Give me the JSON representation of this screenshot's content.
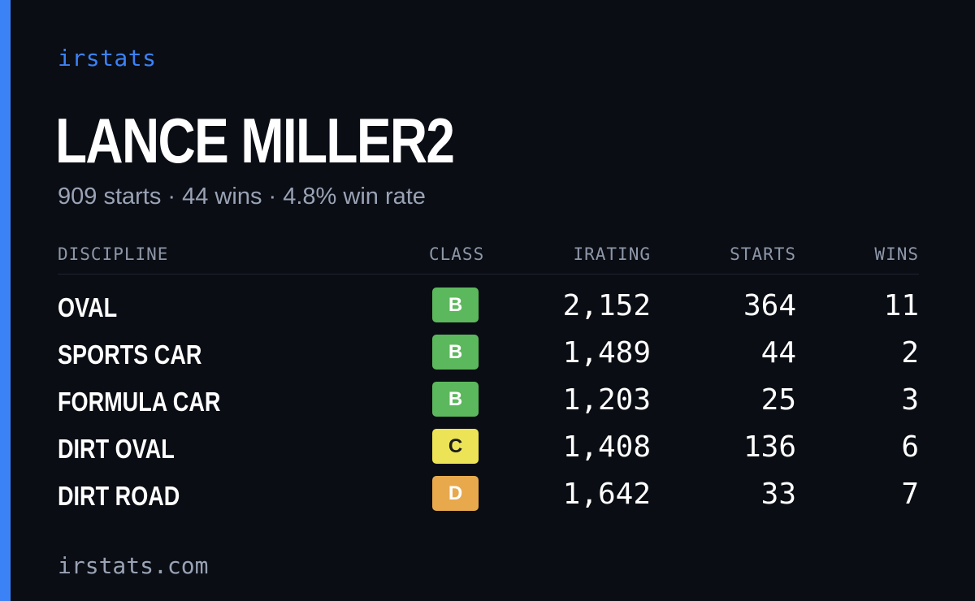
{
  "brand": "irstats",
  "driver": {
    "name": "LANCE MILLER2",
    "summary": "909 starts · 44 wins · 4.8% win rate"
  },
  "table": {
    "headers": {
      "discipline": "DISCIPLINE",
      "class": "CLASS",
      "irating": "IRATING",
      "starts": "STARTS",
      "wins": "WINS"
    },
    "rows": [
      {
        "discipline": "OVAL",
        "class": "B",
        "irating": "2,152",
        "starts": "364",
        "wins": "11"
      },
      {
        "discipline": "SPORTS CAR",
        "class": "B",
        "irating": "1,489",
        "starts": "44",
        "wins": "2"
      },
      {
        "discipline": "FORMULA CAR",
        "class": "B",
        "irating": "1,203",
        "starts": "25",
        "wins": "3"
      },
      {
        "discipline": "DIRT OVAL",
        "class": "C",
        "irating": "1,408",
        "starts": "136",
        "wins": "6"
      },
      {
        "discipline": "DIRT ROAD",
        "class": "D",
        "irating": "1,642",
        "starts": "33",
        "wins": "7"
      }
    ]
  },
  "class_colors": {
    "B": "#5cb85c",
    "C": "#ece456",
    "D": "#e8a94d"
  },
  "accent_color": "#3b82f6",
  "footer": "irstats.com"
}
